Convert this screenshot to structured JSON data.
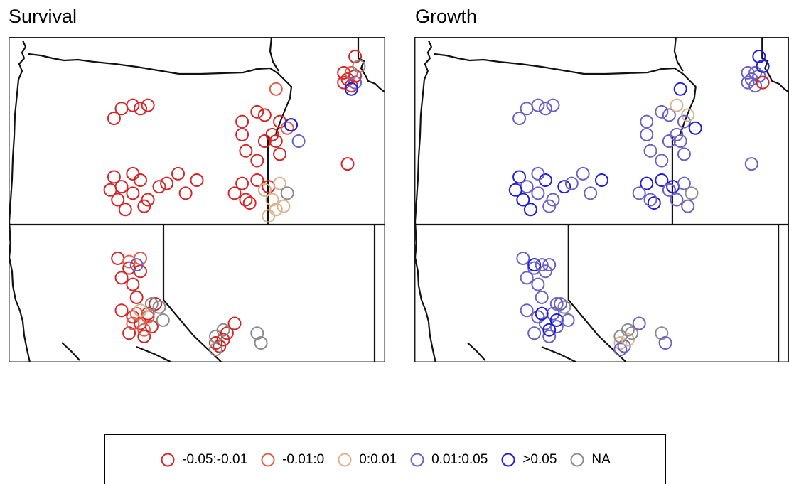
{
  "panels": [
    {
      "id": "survival",
      "title": "Survival",
      "points": [
        [
          1,
          33,
          21
        ],
        [
          1,
          37,
          21
        ],
        [
          1,
          28,
          25
        ],
        [
          1,
          35,
          22
        ],
        [
          1,
          30,
          22
        ],
        [
          1,
          66,
          23
        ],
        [
          1,
          72,
          26
        ],
        [
          1,
          62,
          26
        ],
        [
          1,
          68,
          32
        ],
        [
          1,
          63,
          35
        ],
        [
          1,
          70,
          30
        ],
        [
          1,
          72,
          36
        ],
        [
          1,
          66,
          38
        ],
        [
          1,
          62,
          30
        ],
        [
          1,
          68,
          24
        ],
        [
          1,
          71,
          32
        ],
        [
          2,
          74,
          28
        ],
        [
          4,
          75,
          27
        ],
        [
          4,
          77,
          32
        ],
        [
          5,
          75,
          27
        ],
        [
          1,
          28,
          43
        ],
        [
          1,
          30,
          46
        ],
        [
          1,
          35,
          44
        ],
        [
          1,
          33,
          48
        ],
        [
          1,
          29,
          50
        ],
        [
          1,
          37,
          50
        ],
        [
          1,
          31,
          53
        ],
        [
          1,
          36,
          52
        ],
        [
          1,
          27,
          47
        ],
        [
          1,
          33,
          42
        ],
        [
          1,
          40,
          46
        ],
        [
          1,
          42,
          45
        ],
        [
          1,
          45,
          42
        ],
        [
          1,
          50,
          44
        ],
        [
          1,
          47,
          48
        ],
        [
          1,
          62,
          45
        ],
        [
          1,
          60,
          48
        ],
        [
          1,
          64,
          51
        ],
        [
          1,
          68,
          47
        ],
        [
          1,
          66,
          44
        ],
        [
          1,
          63,
          50
        ],
        [
          1,
          69,
          46
        ],
        [
          3,
          68,
          47
        ],
        [
          3,
          70,
          50
        ],
        [
          3,
          72,
          45
        ],
        [
          3,
          73,
          52
        ],
        [
          6,
          74,
          48
        ],
        [
          3,
          71,
          53
        ],
        [
          3,
          69,
          55
        ],
        [
          2,
          71,
          16
        ],
        [
          1,
          89,
          11
        ],
        [
          1,
          90,
          13
        ],
        [
          1,
          92,
          12
        ],
        [
          1,
          91,
          15
        ],
        [
          1,
          89,
          14
        ],
        [
          2,
          91,
          11
        ],
        [
          4,
          92,
          14
        ],
        [
          5,
          91,
          16
        ],
        [
          1,
          92,
          6
        ],
        [
          6,
          93,
          9
        ],
        [
          1,
          90,
          39
        ],
        [
          1,
          29,
          68
        ],
        [
          1,
          32,
          71
        ],
        [
          1,
          30,
          74
        ],
        [
          1,
          35,
          72
        ],
        [
          1,
          33,
          76
        ],
        [
          2,
          35,
          68
        ],
        [
          2,
          32,
          69
        ],
        [
          4,
          34,
          70
        ],
        [
          1,
          30,
          84
        ],
        [
          1,
          33,
          86
        ],
        [
          1,
          35,
          88
        ],
        [
          1,
          32,
          91
        ],
        [
          1,
          37,
          85
        ],
        [
          1,
          38,
          89
        ],
        [
          1,
          36,
          92
        ],
        [
          1,
          39,
          82
        ],
        [
          1,
          34,
          80
        ],
        [
          2,
          34,
          85
        ],
        [
          2,
          33,
          88
        ],
        [
          2,
          37,
          86
        ],
        [
          2,
          36,
          90
        ],
        [
          6,
          40,
          83
        ],
        [
          6,
          38,
          82
        ],
        [
          6,
          41,
          87
        ],
        [
          3,
          35,
          84
        ],
        [
          1,
          55,
          94
        ],
        [
          1,
          56,
          95
        ],
        [
          6,
          55,
          92
        ],
        [
          6,
          55,
          96
        ],
        [
          1,
          57,
          93
        ],
        [
          1,
          58,
          91
        ],
        [
          6,
          57,
          90
        ],
        [
          1,
          60,
          88
        ],
        [
          6,
          66,
          91
        ],
        [
          6,
          67,
          94
        ]
      ]
    },
    {
      "id": "growth",
      "title": "Growth",
      "points": [
        [
          4,
          33,
          21
        ],
        [
          4,
          37,
          21
        ],
        [
          4,
          28,
          25
        ],
        [
          4,
          35,
          22
        ],
        [
          4,
          30,
          22
        ],
        [
          4,
          66,
          23
        ],
        [
          4,
          72,
          26
        ],
        [
          4,
          62,
          26
        ],
        [
          4,
          68,
          32
        ],
        [
          4,
          63,
          35
        ],
        [
          4,
          70,
          30
        ],
        [
          4,
          72,
          36
        ],
        [
          4,
          66,
          38
        ],
        [
          4,
          62,
          30
        ],
        [
          4,
          68,
          24
        ],
        [
          4,
          71,
          32
        ],
        [
          3,
          70,
          21
        ],
        [
          3,
          73,
          24
        ],
        [
          5,
          75,
          28
        ],
        [
          5,
          28,
          43
        ],
        [
          4,
          30,
          46
        ],
        [
          5,
          35,
          44
        ],
        [
          4,
          33,
          48
        ],
        [
          5,
          29,
          50
        ],
        [
          4,
          37,
          50
        ],
        [
          5,
          31,
          53
        ],
        [
          4,
          36,
          52
        ],
        [
          5,
          27,
          47
        ],
        [
          4,
          33,
          42
        ],
        [
          5,
          40,
          46
        ],
        [
          4,
          42,
          45
        ],
        [
          4,
          45,
          42
        ],
        [
          5,
          50,
          44
        ],
        [
          4,
          47,
          48
        ],
        [
          5,
          62,
          45
        ],
        [
          4,
          60,
          48
        ],
        [
          5,
          64,
          51
        ],
        [
          4,
          68,
          47
        ],
        [
          5,
          66,
          44
        ],
        [
          4,
          63,
          50
        ],
        [
          5,
          69,
          46
        ],
        [
          4,
          68,
          47
        ],
        [
          4,
          70,
          50
        ],
        [
          4,
          72,
          45
        ],
        [
          4,
          73,
          52
        ],
        [
          6,
          74,
          48
        ],
        [
          5,
          71,
          16
        ],
        [
          4,
          89,
          11
        ],
        [
          4,
          90,
          13
        ],
        [
          4,
          92,
          12
        ],
        [
          4,
          91,
          15
        ],
        [
          4,
          89,
          14
        ],
        [
          4,
          91,
          11
        ],
        [
          1,
          93,
          14
        ],
        [
          5,
          92,
          6
        ],
        [
          5,
          93,
          9
        ],
        [
          4,
          90,
          39
        ],
        [
          4,
          29,
          68
        ],
        [
          4,
          32,
          71
        ],
        [
          4,
          30,
          74
        ],
        [
          4,
          35,
          72
        ],
        [
          4,
          33,
          76
        ],
        [
          5,
          32,
          70
        ],
        [
          4,
          34,
          70
        ],
        [
          4,
          36,
          70
        ],
        [
          4,
          30,
          84
        ],
        [
          4,
          33,
          86
        ],
        [
          4,
          35,
          88
        ],
        [
          4,
          32,
          91
        ],
        [
          4,
          37,
          85
        ],
        [
          4,
          38,
          89
        ],
        [
          4,
          36,
          92
        ],
        [
          4,
          39,
          82
        ],
        [
          4,
          34,
          80
        ],
        [
          5,
          34,
          85
        ],
        [
          5,
          38,
          87
        ],
        [
          5,
          36,
          90
        ],
        [
          6,
          40,
          83
        ],
        [
          4,
          38,
          82
        ],
        [
          4,
          41,
          87
        ],
        [
          3,
          55,
          94
        ],
        [
          4,
          56,
          95
        ],
        [
          6,
          55,
          92
        ],
        [
          4,
          55,
          96
        ],
        [
          3,
          57,
          93
        ],
        [
          6,
          58,
          91
        ],
        [
          6,
          57,
          90
        ],
        [
          4,
          60,
          88
        ],
        [
          6,
          66,
          91
        ],
        [
          4,
          67,
          94
        ]
      ]
    }
  ],
  "legend": {
    "items": [
      {
        "label": "-0.05:-0.01",
        "color": "#d62728"
      },
      {
        "label": "-0.01:0",
        "color": "#e0604a"
      },
      {
        "label": "0:0.01",
        "color": "#d9b48f"
      },
      {
        "label": "0.01:0.05",
        "color": "#6a62c8"
      },
      {
        "label": ">0.05",
        "color": "#1f1fdc"
      },
      {
        "label": "NA",
        "color": "#8c8c8c"
      }
    ]
  }
}
